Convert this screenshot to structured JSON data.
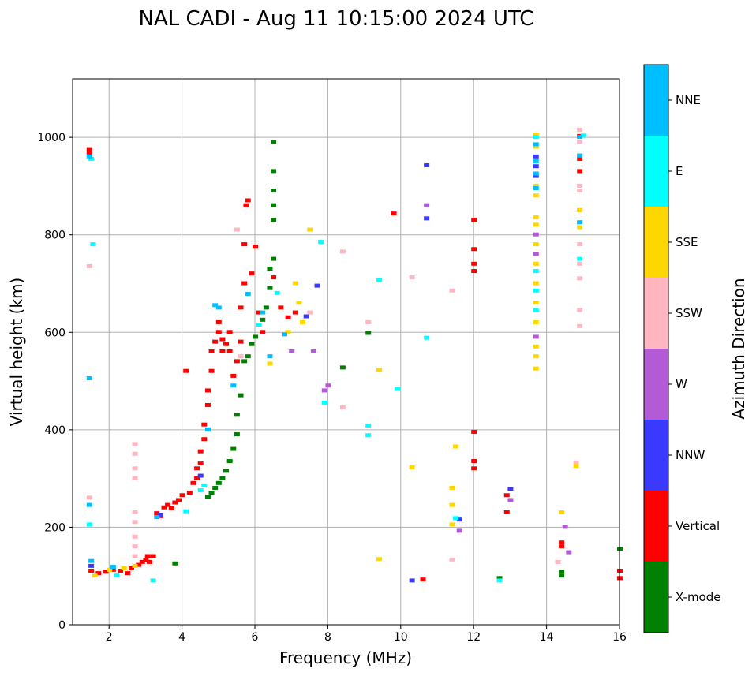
{
  "chart_data": {
    "type": "scatter",
    "title": "NAL CADI - Aug 11 10:15:00 2024 UTC",
    "xlabel": "Frequency (MHz)",
    "ylabel": "Virtual height (km)",
    "xlim": [
      1,
      16
    ],
    "ylim": [
      0,
      1120
    ],
    "xticks": [
      2,
      4,
      6,
      8,
      10,
      12,
      14,
      16
    ],
    "yticks": [
      0,
      200,
      400,
      600,
      800,
      1000
    ],
    "grid": true,
    "colorbar": {
      "label": "Azimuth Direction",
      "categories": [
        {
          "name": "X-mode",
          "color": "#008000"
        },
        {
          "name": "Vertical",
          "color": "#ff0000"
        },
        {
          "name": "NNW",
          "color": "#3a3aff"
        },
        {
          "name": "W",
          "color": "#b45ad6"
        },
        {
          "name": "SSW",
          "color": "#ffb6c1"
        },
        {
          "name": "SSE",
          "color": "#ffd700"
        },
        {
          "name": "E",
          "color": "#00ffff"
        },
        {
          "name": "NNE",
          "color": "#00bfff"
        }
      ]
    },
    "series": [
      {
        "name": "Vertical",
        "points": [
          [
            1.45,
            975
          ],
          [
            1.45,
            968
          ],
          [
            1.5,
            110
          ],
          [
            1.7,
            105
          ],
          [
            1.9,
            108
          ],
          [
            2.1,
            112
          ],
          [
            2.3,
            110
          ],
          [
            2.5,
            105
          ],
          [
            2.6,
            115
          ],
          [
            2.8,
            122
          ],
          [
            2.9,
            128
          ],
          [
            3.0,
            132
          ],
          [
            3.05,
            140
          ],
          [
            3.1,
            128
          ],
          [
            3.2,
            140
          ],
          [
            3.3,
            228
          ],
          [
            3.4,
            222
          ],
          [
            3.5,
            240
          ],
          [
            3.6,
            245
          ],
          [
            3.7,
            238
          ],
          [
            3.8,
            250
          ],
          [
            3.9,
            255
          ],
          [
            4.0,
            265
          ],
          [
            4.1,
            520
          ],
          [
            4.2,
            270
          ],
          [
            4.3,
            290
          ],
          [
            4.4,
            300
          ],
          [
            4.4,
            320
          ],
          [
            4.5,
            330
          ],
          [
            4.5,
            355
          ],
          [
            4.6,
            380
          ],
          [
            4.6,
            410
          ],
          [
            4.7,
            450
          ],
          [
            4.7,
            480
          ],
          [
            4.8,
            520
          ],
          [
            4.8,
            560
          ],
          [
            4.9,
            580
          ],
          [
            5.0,
            600
          ],
          [
            5.0,
            620
          ],
          [
            5.1,
            560
          ],
          [
            5.1,
            585
          ],
          [
            5.2,
            575
          ],
          [
            5.3,
            560
          ],
          [
            5.3,
            600
          ],
          [
            5.4,
            510
          ],
          [
            5.5,
            540
          ],
          [
            5.6,
            580
          ],
          [
            5.6,
            650
          ],
          [
            5.7,
            700
          ],
          [
            5.7,
            780
          ],
          [
            5.75,
            860
          ],
          [
            5.8,
            870
          ],
          [
            5.9,
            720
          ],
          [
            6.0,
            775
          ],
          [
            6.1,
            640
          ],
          [
            6.2,
            600
          ],
          [
            6.5,
            712
          ],
          [
            6.7,
            650
          ],
          [
            6.9,
            630
          ],
          [
            7.1,
            640
          ],
          [
            9.8,
            843
          ],
          [
            10.6,
            92
          ],
          [
            12.0,
            830
          ],
          [
            12.0,
            770
          ],
          [
            12.0,
            740
          ],
          [
            12.0,
            725
          ],
          [
            12.0,
            395
          ],
          [
            12.0,
            335
          ],
          [
            12.0,
            320
          ],
          [
            12.9,
            230
          ],
          [
            12.9,
            265
          ],
          [
            14.4,
            168
          ],
          [
            14.4,
            160
          ],
          [
            14.9,
            1002
          ],
          [
            14.9,
            955
          ],
          [
            14.9,
            930
          ],
          [
            16.0,
            110
          ],
          [
            16.0,
            95
          ]
        ]
      },
      {
        "name": "X-mode",
        "points": [
          [
            3.8,
            125
          ],
          [
            4.7,
            262
          ],
          [
            4.8,
            270
          ],
          [
            4.9,
            280
          ],
          [
            5.0,
            290
          ],
          [
            5.1,
            300
          ],
          [
            5.2,
            315
          ],
          [
            5.3,
            335
          ],
          [
            5.4,
            360
          ],
          [
            5.5,
            390
          ],
          [
            5.5,
            430
          ],
          [
            5.6,
            470
          ],
          [
            5.7,
            540
          ],
          [
            5.8,
            550
          ],
          [
            5.9,
            575
          ],
          [
            6.0,
            590
          ],
          [
            6.2,
            625
          ],
          [
            6.3,
            650
          ],
          [
            6.4,
            690
          ],
          [
            6.4,
            730
          ],
          [
            6.5,
            750
          ],
          [
            6.5,
            830
          ],
          [
            6.5,
            860
          ],
          [
            6.5,
            890
          ],
          [
            6.5,
            930
          ],
          [
            6.5,
            990
          ],
          [
            9.1,
            598
          ],
          [
            8.4,
            527
          ],
          [
            12.7,
            95
          ],
          [
            14.4,
            108
          ],
          [
            14.4,
            100
          ],
          [
            16.0,
            155
          ]
        ]
      },
      {
        "name": "NNW",
        "points": [
          [
            1.5,
            120
          ],
          [
            3.4,
            225
          ],
          [
            4.5,
            305
          ],
          [
            7.4,
            632
          ],
          [
            7.7,
            695
          ],
          [
            10.7,
            942
          ],
          [
            10.7,
            833
          ],
          [
            10.3,
            90
          ],
          [
            11.6,
            215
          ],
          [
            13.0,
            278
          ],
          [
            13.7,
            960
          ],
          [
            13.7,
            940
          ],
          [
            13.7,
            920
          ]
        ]
      },
      {
        "name": "W",
        "points": [
          [
            7.0,
            560
          ],
          [
            7.6,
            560
          ],
          [
            7.9,
            480
          ],
          [
            8.0,
            490
          ],
          [
            10.7,
            860
          ],
          [
            11.6,
            192
          ],
          [
            13.7,
            760
          ],
          [
            13.7,
            800
          ],
          [
            13.7,
            590
          ],
          [
            14.5,
            200
          ],
          [
            14.6,
            148
          ],
          [
            13.0,
            255
          ]
        ]
      },
      {
        "name": "SSW",
        "points": [
          [
            1.45,
            735
          ],
          [
            1.45,
            260
          ],
          [
            2.7,
            370
          ],
          [
            2.7,
            350
          ],
          [
            2.7,
            320
          ],
          [
            2.7,
            300
          ],
          [
            2.7,
            230
          ],
          [
            2.7,
            210
          ],
          [
            2.7,
            180
          ],
          [
            2.7,
            160
          ],
          [
            2.7,
            140
          ],
          [
            5.5,
            810
          ],
          [
            5.6,
            550
          ],
          [
            7.5,
            640
          ],
          [
            8.4,
            765
          ],
          [
            8.4,
            445
          ],
          [
            9.1,
            620
          ],
          [
            10.3,
            712
          ],
          [
            11.4,
            685
          ],
          [
            11.4,
            133
          ],
          [
            14.3,
            128
          ],
          [
            14.9,
            1015
          ],
          [
            14.9,
            990
          ],
          [
            14.9,
            900
          ],
          [
            14.9,
            890
          ],
          [
            14.9,
            850
          ],
          [
            14.9,
            780
          ],
          [
            14.9,
            740
          ],
          [
            14.9,
            710
          ],
          [
            14.9,
            645
          ],
          [
            14.9,
            612
          ],
          [
            14.8,
            332
          ]
        ]
      },
      {
        "name": "SSE",
        "points": [
          [
            1.6,
            100
          ],
          [
            2.0,
            112
          ],
          [
            2.4,
            115
          ],
          [
            2.7,
            120
          ],
          [
            6.4,
            535
          ],
          [
            6.9,
            600
          ],
          [
            7.1,
            700
          ],
          [
            7.2,
            660
          ],
          [
            7.3,
            620
          ],
          [
            7.5,
            810
          ],
          [
            9.4,
            522
          ],
          [
            9.4,
            134
          ],
          [
            10.3,
            322
          ],
          [
            11.4,
            280
          ],
          [
            11.4,
            245
          ],
          [
            11.4,
            205
          ],
          [
            11.5,
            365
          ],
          [
            13.7,
            1005
          ],
          [
            13.7,
            980
          ],
          [
            13.7,
            900
          ],
          [
            13.7,
            880
          ],
          [
            13.7,
            835
          ],
          [
            13.7,
            820
          ],
          [
            13.7,
            780
          ],
          [
            13.7,
            740
          ],
          [
            13.7,
            700
          ],
          [
            13.7,
            660
          ],
          [
            13.7,
            620
          ],
          [
            13.7,
            570
          ],
          [
            13.7,
            550
          ],
          [
            13.7,
            525
          ],
          [
            14.9,
            850
          ],
          [
            14.9,
            815
          ],
          [
            14.8,
            325
          ],
          [
            14.4,
            230
          ]
        ]
      },
      {
        "name": "E",
        "points": [
          [
            1.45,
            205
          ],
          [
            1.5,
            955
          ],
          [
            1.55,
            780
          ],
          [
            2.2,
            100
          ],
          [
            3.2,
            90
          ],
          [
            4.1,
            232
          ],
          [
            4.5,
            275
          ],
          [
            4.6,
            285
          ],
          [
            6.1,
            615
          ],
          [
            6.6,
            680
          ],
          [
            7.8,
            785
          ],
          [
            7.9,
            455
          ],
          [
            9.1,
            408
          ],
          [
            9.1,
            388
          ],
          [
            9.4,
            707
          ],
          [
            9.9,
            483
          ],
          [
            10.7,
            588
          ],
          [
            11.5,
            218
          ],
          [
            12.7,
            90
          ],
          [
            13.7,
            1000
          ],
          [
            13.7,
            725
          ],
          [
            13.7,
            685
          ],
          [
            13.7,
            645
          ],
          [
            14.9,
            962
          ],
          [
            14.9,
            825
          ],
          [
            14.9,
            750
          ],
          [
            15.0,
            1003
          ]
        ]
      },
      {
        "name": "NNE",
        "points": [
          [
            1.45,
            960
          ],
          [
            1.45,
            505
          ],
          [
            1.45,
            245
          ],
          [
            1.5,
            130
          ],
          [
            2.1,
            118
          ],
          [
            3.3,
            220
          ],
          [
            4.7,
            400
          ],
          [
            4.9,
            655
          ],
          [
            5.0,
            650
          ],
          [
            5.4,
            490
          ],
          [
            5.8,
            678
          ],
          [
            6.2,
            640
          ],
          [
            6.4,
            550
          ],
          [
            6.8,
            595
          ],
          [
            13.7,
            985
          ],
          [
            13.7,
            950
          ],
          [
            13.7,
            925
          ],
          [
            13.7,
            895
          ],
          [
            14.9,
            1000
          ],
          [
            14.9,
            962
          ],
          [
            14.9,
            825
          ]
        ]
      }
    ]
  }
}
